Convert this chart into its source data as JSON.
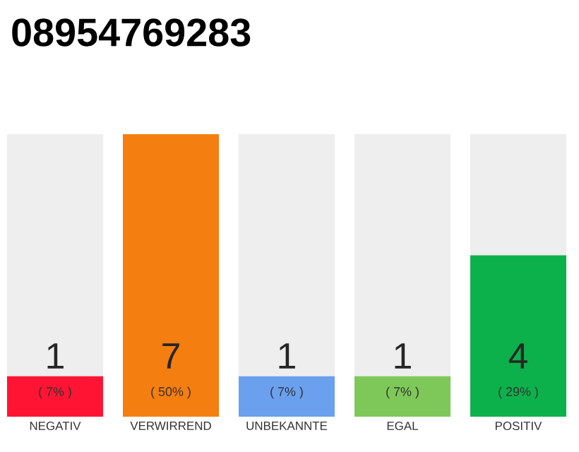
{
  "chart_data": {
    "type": "bar",
    "title": "08954769283",
    "categories": [
      "NEGATIV",
      "VERWIRREND",
      "UNBEKANNTE",
      "EGAL",
      "POSITIV"
    ],
    "values": [
      1,
      7,
      1,
      1,
      4
    ],
    "colors": [
      "#ff1533",
      "#f57e10",
      "#6aa0ee",
      "#7ec85a",
      "#0db14b"
    ],
    "value_labels": [
      "1",
      "7",
      "1",
      "1",
      "4"
    ],
    "annotations": [
      "( 7% )",
      "( 50% )",
      "( 7% )",
      "( 7% )",
      "( 29% )"
    ]
  }
}
